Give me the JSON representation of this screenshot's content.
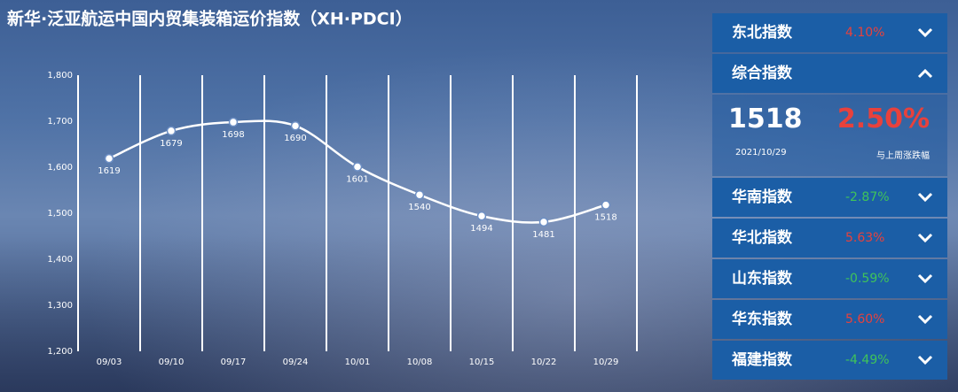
{
  "chart_data": {
    "type": "line",
    "title": "新华·泛亚航运中国内贸集装箱运价指数（XH·PDCI）",
    "categories": [
      "09/03",
      "09/10",
      "09/17",
      "09/24",
      "10/01",
      "10/08",
      "10/15",
      "10/22",
      "10/29"
    ],
    "values": [
      1619,
      1679,
      1698,
      1690,
      1601,
      1540,
      1494,
      1481,
      1518
    ],
    "color": "#ffffff",
    "smooth": true,
    "ylim": [
      1200,
      1800
    ],
    "yticks": [
      {
        "value": 1200,
        "label": "1,200"
      },
      {
        "value": 1300,
        "label": "1,300"
      },
      {
        "value": 1400,
        "label": "1,400"
      },
      {
        "value": 1500,
        "label": "1,500"
      },
      {
        "value": 1600,
        "label": "1,600"
      },
      {
        "value": 1700,
        "label": "1,700"
      },
      {
        "value": 1800,
        "label": "1,800"
      }
    ]
  },
  "panel": {
    "rows": [
      {
        "name": "东北指数",
        "change": "4.10%",
        "color": "#e8413c"
      },
      {
        "name": "综合指数",
        "expanded": true,
        "value": "1518",
        "change": "2.50%",
        "date": "2021/10/29",
        "caption": "与上周涨跌幅",
        "color": "#e8413c"
      },
      {
        "name": "华南指数",
        "change": "-2.87%",
        "color": "#3fc45a"
      },
      {
        "name": "华北指数",
        "change": "5.63%",
        "color": "#e8413c"
      },
      {
        "name": "山东指数",
        "change": "-0.59%",
        "color": "#3fc45a"
      },
      {
        "name": "华东指数",
        "change": "5.60%",
        "color": "#e8413c"
      },
      {
        "name": "福建指数",
        "change": "-4.49%",
        "color": "#3fc45a"
      }
    ]
  }
}
